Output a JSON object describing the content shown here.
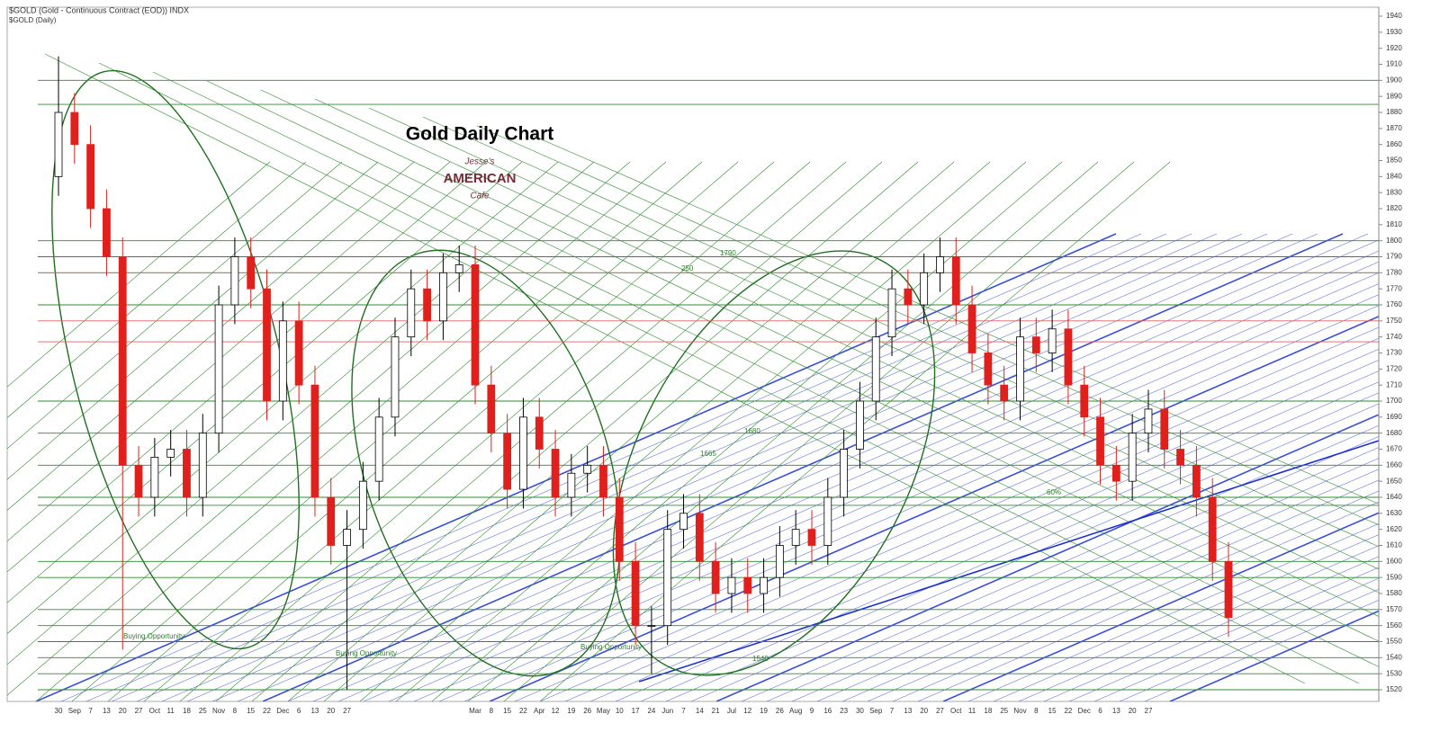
{
  "chart_data": {
    "type": "candlestick",
    "symbol_title": "$GOLD (Gold - Continuous Contract (EOD)) INDX",
    "symbol_subtitle": "$GOLD (Daily)",
    "title": "Gold Daily Chart",
    "logo": [
      "Jesse's",
      "AMERICAN",
      "Cafe"
    ],
    "annotations": [
      "1790",
      "250",
      "1680",
      "1665",
      "60%",
      "1540",
      "Buying Opportunity",
      "Buying Opportunity",
      "Buying Opportunity"
    ],
    "categories": [
      "30",
      "Sep",
      "7",
      "13",
      "20",
      "27",
      "Oct",
      "11",
      "18",
      "25",
      "Nov",
      "8",
      "15",
      "22",
      "Dec",
      "6",
      "13",
      "20",
      "27",
      null,
      null,
      null,
      null,
      null,
      null,
      null,
      "Mar",
      "8",
      "15",
      "22",
      "Apr",
      "12",
      "19",
      "26",
      "May",
      "10",
      "17",
      "24",
      "Jun",
      "7",
      "14",
      "21",
      "Jul",
      "12",
      "19",
      "26",
      "Aug",
      "9",
      "16",
      "23",
      "30",
      "Sep",
      "7",
      "13",
      "20",
      "27",
      "Oct",
      "11",
      "18",
      "25",
      "Nov",
      "8",
      "15",
      "22",
      "Dec",
      "6",
      "13",
      "20",
      "27",
      null,
      null,
      null,
      null,
      null
    ],
    "open": [
      1840,
      1880,
      1860,
      1820,
      1790,
      1660,
      1640,
      1665,
      1670,
      1640,
      1680,
      1760,
      1790,
      1770,
      1700,
      1750,
      1710,
      1640,
      1610,
      1620,
      1650,
      1690,
      1740,
      1770,
      1750,
      1780,
      1785,
      1710,
      1680,
      1645,
      1690,
      1670,
      1640,
      1655,
      1660,
      1640,
      1600,
      1560,
      1560,
      1620,
      1630,
      1600,
      1580,
      1590,
      1580,
      1590,
      1610,
      1620,
      1610,
      1640,
      1670,
      1700,
      1740,
      1770,
      1760,
      1780,
      1790,
      1760,
      1730,
      1710,
      1700,
      1740,
      1730,
      1745,
      1710,
      1690,
      1660,
      1650,
      1680,
      1695,
      1670,
      1660,
      1640,
      1600
    ],
    "high": [
      1915,
      1892,
      1872,
      1832,
      1802,
      1672,
      1677,
      1682,
      1682,
      1692,
      1772,
      1802,
      1802,
      1782,
      1762,
      1762,
      1722,
      1652,
      1632,
      1662,
      1702,
      1752,
      1782,
      1782,
      1792,
      1797,
      1797,
      1722,
      1692,
      1702,
      1702,
      1682,
      1667,
      1672,
      1672,
      1652,
      1612,
      1572,
      1632,
      1642,
      1642,
      1612,
      1602,
      1602,
      1602,
      1622,
      1632,
      1632,
      1652,
      1682,
      1712,
      1752,
      1782,
      1782,
      1792,
      1802,
      1802,
      1772,
      1742,
      1722,
      1752,
      1752,
      1757,
      1757,
      1722,
      1702,
      1672,
      1692,
      1707,
      1707,
      1682,
      1672,
      1652,
      1612
    ],
    "low": [
      1828,
      1848,
      1808,
      1778,
      1545,
      1628,
      1628,
      1653,
      1628,
      1628,
      1668,
      1748,
      1758,
      1688,
      1688,
      1698,
      1628,
      1598,
      1520,
      1608,
      1638,
      1678,
      1728,
      1738,
      1738,
      1768,
      1698,
      1668,
      1633,
      1633,
      1658,
      1628,
      1628,
      1643,
      1628,
      1588,
      1548,
      1530,
      1548,
      1608,
      1588,
      1568,
      1568,
      1568,
      1568,
      1578,
      1598,
      1598,
      1598,
      1628,
      1658,
      1688,
      1728,
      1748,
      1748,
      1768,
      1748,
      1718,
      1698,
      1688,
      1688,
      1718,
      1718,
      1698,
      1678,
      1648,
      1638,
      1638,
      1668,
      1658,
      1648,
      1628,
      1588,
      1553
    ],
    "close": [
      1880,
      1860,
      1820,
      1790,
      1660,
      1640,
      1665,
      1670,
      1640,
      1680,
      1760,
      1790,
      1770,
      1700,
      1750,
      1710,
      1640,
      1610,
      1620,
      1650,
      1690,
      1740,
      1770,
      1750,
      1780,
      1785,
      1710,
      1680,
      1645,
      1690,
      1670,
      1640,
      1655,
      1660,
      1640,
      1600,
      1560,
      1560,
      1620,
      1630,
      1600,
      1580,
      1590,
      1580,
      1590,
      1610,
      1620,
      1610,
      1640,
      1670,
      1700,
      1740,
      1770,
      1760,
      1780,
      1790,
      1760,
      1730,
      1710,
      1700,
      1740,
      1730,
      1745,
      1710,
      1690,
      1660,
      1650,
      1680,
      1695,
      1670,
      1660,
      1640,
      1600,
      1565
    ],
    "up_color": "#ffffff",
    "down_color": "#e0201c",
    "ylim": [
      1520,
      1940
    ],
    "yticks": [
      1520,
      1530,
      1540,
      1550,
      1560,
      1570,
      1580,
      1590,
      1600,
      1610,
      1620,
      1630,
      1640,
      1650,
      1660,
      1670,
      1680,
      1690,
      1700,
      1710,
      1720,
      1730,
      1740,
      1750,
      1760,
      1770,
      1780,
      1790,
      1800,
      1810,
      1820,
      1830,
      1840,
      1850,
      1860,
      1870,
      1880,
      1890,
      1900,
      1910,
      1920,
      1930,
      1940
    ],
    "green_levels": [
      1900,
      1885,
      1800,
      1790,
      1780,
      1760,
      1700,
      1680,
      1660,
      1640,
      1635,
      1600,
      1590,
      1570,
      1560,
      1550,
      1540,
      1530,
      1520
    ],
    "green_color": "#2e8b2e",
    "red_levels": [
      1780,
      1750,
      1737
    ],
    "red_color": "#e06060"
  }
}
